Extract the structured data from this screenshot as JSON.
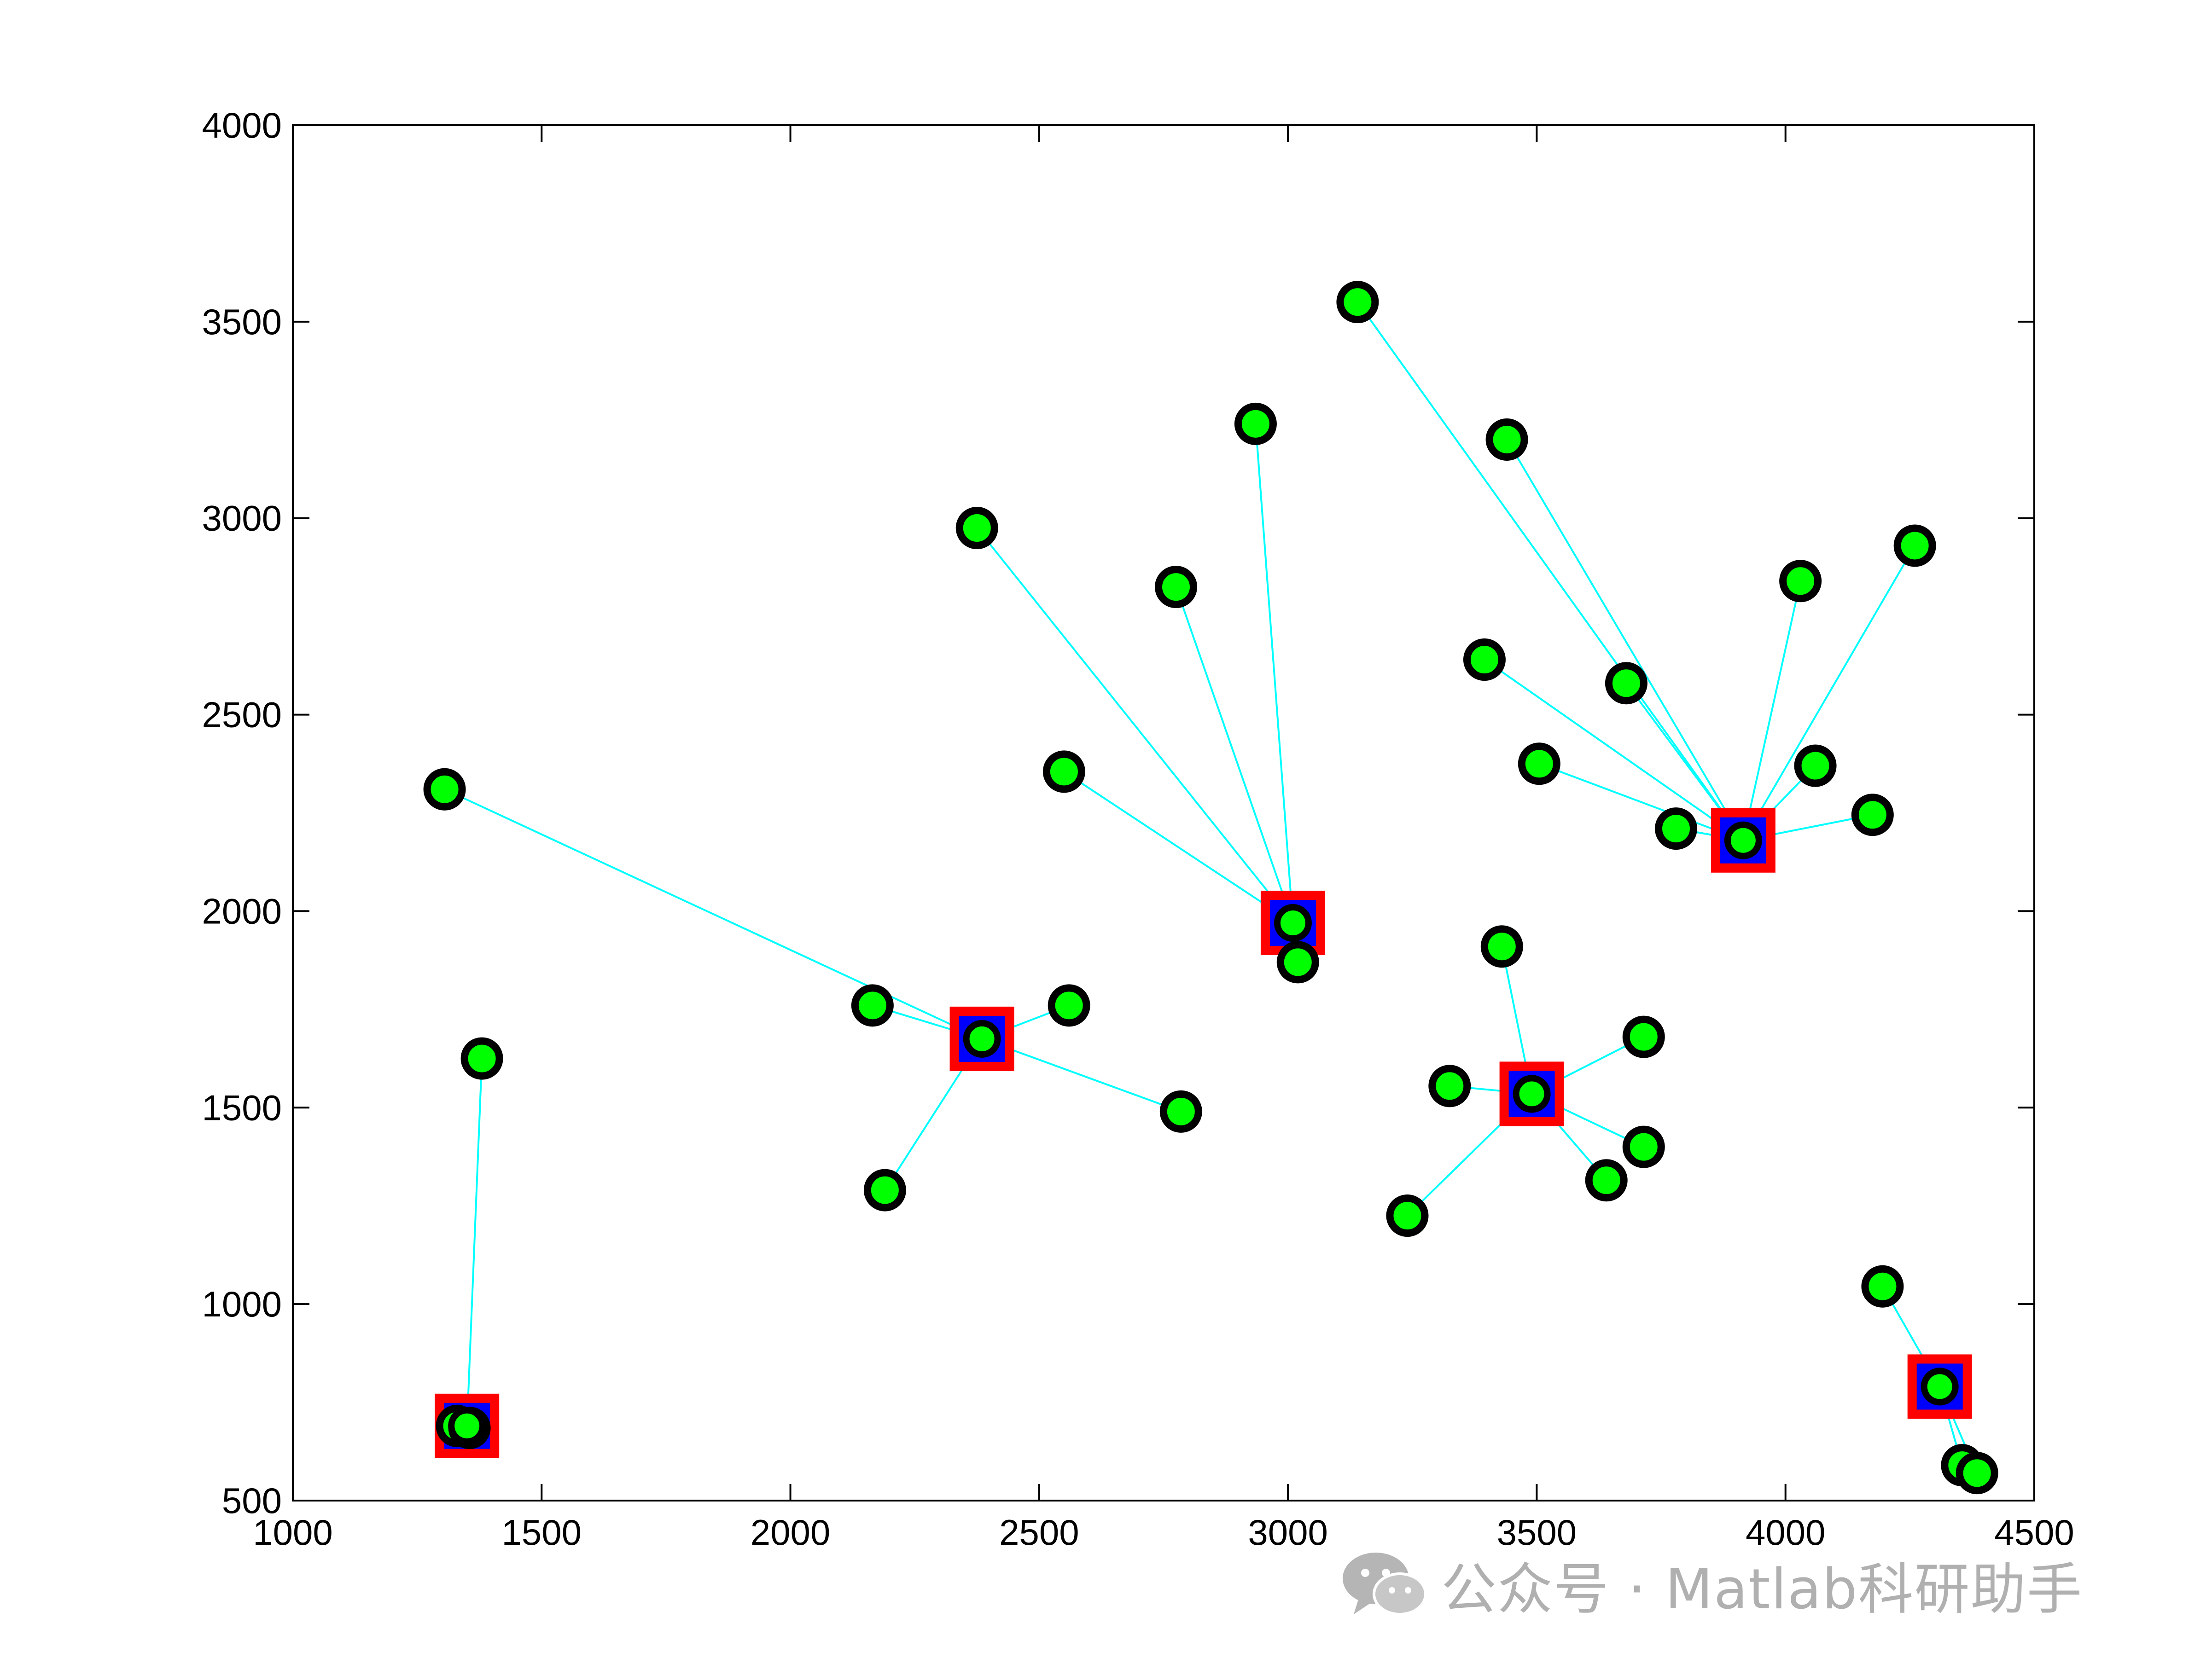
{
  "chart_data": {
    "type": "scatter",
    "title": "",
    "xlabel": "",
    "ylabel": "",
    "xlim": [
      1000,
      4500
    ],
    "ylim": [
      500,
      4000
    ],
    "xticks": [
      1000,
      1500,
      2000,
      2500,
      3000,
      3500,
      4000,
      4500
    ],
    "yticks": [
      500,
      1000,
      1500,
      2000,
      2500,
      3000,
      3500,
      4000
    ],
    "grid": false,
    "legend": "none",
    "colors": {
      "point_fill": "#00ff00",
      "point_edge": "#000000",
      "center_outer": "#ff0000",
      "center_inner": "#0000ff",
      "link": "#00ffff"
    },
    "centers": [
      {
        "x": 1350,
        "y": 690
      },
      {
        "x": 2385,
        "y": 1675
      },
      {
        "x": 3010,
        "y": 1970
      },
      {
        "x": 3490,
        "y": 1535
      },
      {
        "x": 3915,
        "y": 2180
      },
      {
        "x": 4310,
        "y": 790
      }
    ],
    "points": [
      {
        "x": 1380,
        "y": 1625,
        "center": 0
      },
      {
        "x": 1330,
        "y": 690,
        "center": 0
      },
      {
        "x": 1355,
        "y": 685,
        "center": 0
      },
      {
        "x": 1305,
        "y": 2310,
        "center": 1
      },
      {
        "x": 2165,
        "y": 1760,
        "center": 1
      },
      {
        "x": 2560,
        "y": 1760,
        "center": 1
      },
      {
        "x": 2785,
        "y": 1490,
        "center": 1
      },
      {
        "x": 2190,
        "y": 1290,
        "center": 1
      },
      {
        "x": 2375,
        "y": 2975,
        "center": 2
      },
      {
        "x": 2775,
        "y": 2825,
        "center": 2
      },
      {
        "x": 2935,
        "y": 3240,
        "center": 2
      },
      {
        "x": 2550,
        "y": 2355,
        "center": 2
      },
      {
        "x": 3020,
        "y": 1870,
        "center": 2
      },
      {
        "x": 3430,
        "y": 1910,
        "center": 3
      },
      {
        "x": 3325,
        "y": 1555,
        "center": 3
      },
      {
        "x": 3715,
        "y": 1680,
        "center": 3
      },
      {
        "x": 3715,
        "y": 1400,
        "center": 3
      },
      {
        "x": 3640,
        "y": 1315,
        "center": 3
      },
      {
        "x": 3240,
        "y": 1225,
        "center": 3
      },
      {
        "x": 3140,
        "y": 3550,
        "center": 4
      },
      {
        "x": 3440,
        "y": 3200,
        "center": 4
      },
      {
        "x": 3395,
        "y": 2640,
        "center": 4
      },
      {
        "x": 3680,
        "y": 2580,
        "center": 4
      },
      {
        "x": 3505,
        "y": 2375,
        "center": 4
      },
      {
        "x": 3780,
        "y": 2210,
        "center": 4
      },
      {
        "x": 4030,
        "y": 2840,
        "center": 4
      },
      {
        "x": 4260,
        "y": 2930,
        "center": 4
      },
      {
        "x": 4060,
        "y": 2370,
        "center": 4
      },
      {
        "x": 4175,
        "y": 2245,
        "center": 4
      },
      {
        "x": 4195,
        "y": 1045,
        "center": 5
      },
      {
        "x": 4355,
        "y": 590,
        "center": 5
      },
      {
        "x": 4385,
        "y": 570,
        "center": 5
      }
    ]
  },
  "watermark": {
    "text": "公众号 · Matlab科研助手",
    "icon": "wechat-icon"
  }
}
